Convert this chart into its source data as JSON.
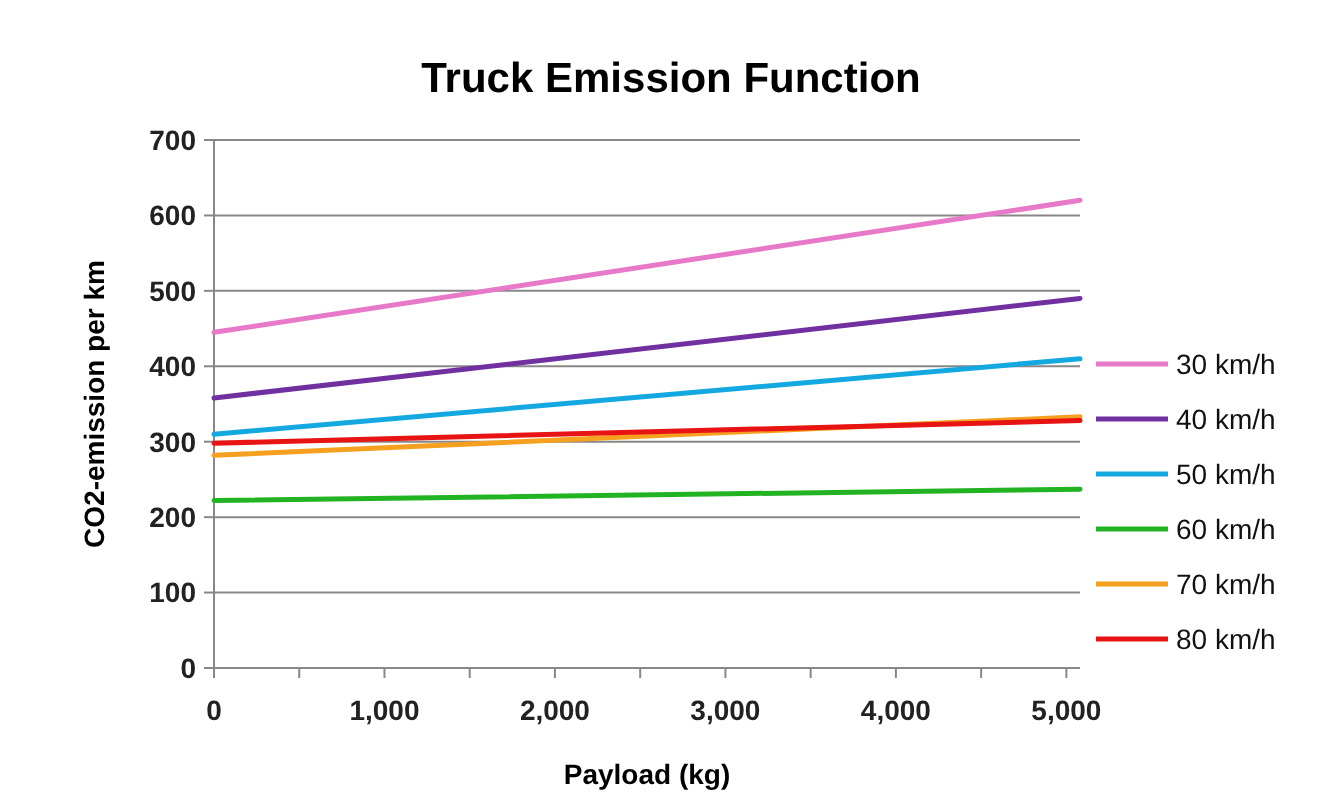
{
  "chart_data": {
    "type": "line",
    "title": "Truck Emission  Function",
    "xlabel": "Payload (kg)",
    "ylabel": "CO2-emission per km",
    "x": [
      0,
      5080
    ],
    "xlim": [
      0,
      5080
    ],
    "xticks": [
      0,
      {
        "value": 500,
        "label": null
      },
      {
        "value": 1000,
        "label": "1,000"
      },
      {
        "value": 1500,
        "label": null
      },
      {
        "value": 2000,
        "label": "2,000"
      },
      {
        "value": 2500,
        "label": null
      },
      {
        "value": 3000,
        "label": "3,000"
      },
      {
        "value": 3500,
        "label": null
      },
      {
        "value": 4000,
        "label": "4,000"
      },
      {
        "value": 4500,
        "label": null
      },
      {
        "value": 5000,
        "label": "5,000"
      }
    ],
    "ylim": [
      0,
      700
    ],
    "yticks": [
      0,
      100,
      200,
      300,
      400,
      500,
      600,
      700
    ],
    "grid": "y",
    "legend": "right",
    "marker": "none",
    "line_style": "solid",
    "series": [
      {
        "name": "30 km/h",
        "color": "#e879c8",
        "values": [
          445,
          620
        ]
      },
      {
        "name": "40 km/h",
        "color": "#7030a0",
        "values": [
          358,
          490
        ]
      },
      {
        "name": "50 km/h",
        "color": "#14a8e0",
        "values": [
          310,
          410
        ]
      },
      {
        "name": "60 km/h",
        "color": "#22b322",
        "values": [
          222,
          237
        ]
      },
      {
        "name": "70 km/h",
        "color": "#f5a01e",
        "values": [
          282,
          333
        ]
      },
      {
        "name": "80 km/h",
        "color": "#e81414",
        "values": [
          298,
          328
        ]
      }
    ]
  }
}
